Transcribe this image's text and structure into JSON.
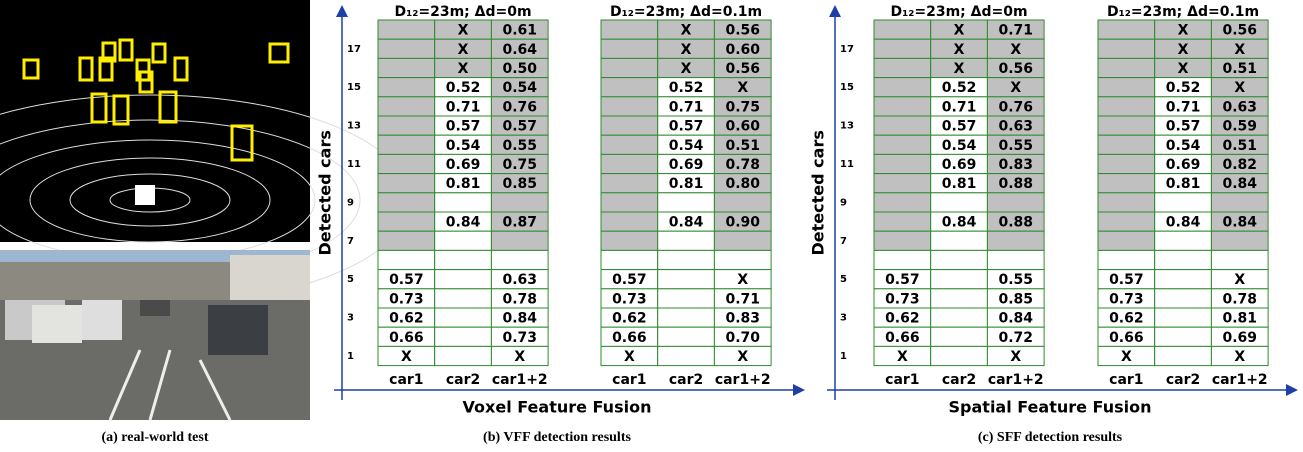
{
  "panels": [
    {
      "caption": "(a) real-world test"
    },
    {
      "caption": "(b) VFF detection results",
      "y_title": "Detected cars",
      "x_title": "Voxel Feature Fusion",
      "row_labels": [
        "17",
        "15",
        "13",
        "11",
        "9",
        "7",
        "5",
        "3",
        "1"
      ],
      "columns": [
        "car1",
        "car2",
        "car1+2"
      ],
      "tables": [
        {
          "title": "D₁₂=23m; Δd=0m",
          "rows": [
            [
              null,
              "X",
              "0.61"
            ],
            [
              null,
              "X",
              "0.64"
            ],
            [
              null,
              "X",
              "0.50"
            ],
            [
              null,
              "0.52",
              "0.54"
            ],
            [
              null,
              "0.71",
              "0.76"
            ],
            [
              null,
              "0.57",
              "0.57"
            ],
            [
              null,
              "0.54",
              "0.55"
            ],
            [
              null,
              "0.69",
              "0.75"
            ],
            [
              null,
              "0.81",
              "0.85"
            ],
            [
              null,
              null,
              null
            ],
            [
              null,
              "0.84",
              "0.87"
            ],
            [
              null,
              null,
              null
            ],
            [
              null,
              null,
              null
            ],
            [
              "0.57",
              null,
              "0.63"
            ],
            [
              "0.73",
              null,
              "0.78"
            ],
            [
              "0.62",
              null,
              "0.84"
            ],
            [
              "0.66",
              null,
              "0.73"
            ],
            [
              "X",
              null,
              "X"
            ]
          ]
        },
        {
          "title": "D₁₂=23m; Δd=0.1m",
          "rows": [
            [
              null,
              "X",
              "0.56"
            ],
            [
              null,
              "X",
              "0.60"
            ],
            [
              null,
              "X",
              "0.56"
            ],
            [
              null,
              "0.52",
              "X"
            ],
            [
              null,
              "0.71",
              "0.75"
            ],
            [
              null,
              "0.57",
              "0.60"
            ],
            [
              null,
              "0.54",
              "0.51"
            ],
            [
              null,
              "0.69",
              "0.78"
            ],
            [
              null,
              "0.81",
              "0.80"
            ],
            [
              null,
              null,
              null
            ],
            [
              null,
              "0.84",
              "0.90"
            ],
            [
              null,
              null,
              null
            ],
            [
              null,
              null,
              null
            ],
            [
              "0.57",
              null,
              "X"
            ],
            [
              "0.73",
              null,
              "0.71"
            ],
            [
              "0.62",
              null,
              "0.83"
            ],
            [
              "0.66",
              null,
              "0.70"
            ],
            [
              "X",
              null,
              "X"
            ]
          ]
        }
      ]
    },
    {
      "caption": "(c) SFF detection results",
      "y_title": "Detected cars",
      "x_title": "Spatial Feature Fusion",
      "row_labels": [
        "17",
        "15",
        "13",
        "11",
        "9",
        "7",
        "5",
        "3",
        "1"
      ],
      "columns": [
        "car1",
        "car2",
        "car1+2"
      ],
      "tables": [
        {
          "title": "D₁₂=23m; Δd=0m",
          "rows": [
            [
              null,
              "X",
              "0.71"
            ],
            [
              null,
              "X",
              "X"
            ],
            [
              null,
              "X",
              "0.56"
            ],
            [
              null,
              "0.52",
              "X"
            ],
            [
              null,
              "0.71",
              "0.76"
            ],
            [
              null,
              "0.57",
              "0.63"
            ],
            [
              null,
              "0.54",
              "0.55"
            ],
            [
              null,
              "0.69",
              "0.83"
            ],
            [
              null,
              "0.81",
              "0.88"
            ],
            [
              null,
              null,
              null
            ],
            [
              null,
              "0.84",
              "0.88"
            ],
            [
              null,
              null,
              null
            ],
            [
              null,
              null,
              null
            ],
            [
              "0.57",
              null,
              "0.55"
            ],
            [
              "0.73",
              null,
              "0.85"
            ],
            [
              "0.62",
              null,
              "0.84"
            ],
            [
              "0.66",
              null,
              "0.72"
            ],
            [
              "X",
              null,
              "X"
            ]
          ]
        },
        {
          "title": "D₁₂=23m; Δd=0.1m",
          "rows": [
            [
              null,
              "X",
              "0.56"
            ],
            [
              null,
              "X",
              "X"
            ],
            [
              null,
              "X",
              "0.51"
            ],
            [
              null,
              "0.52",
              "X"
            ],
            [
              null,
              "0.71",
              "0.63"
            ],
            [
              null,
              "0.57",
              "0.59"
            ],
            [
              null,
              "0.54",
              "0.51"
            ],
            [
              null,
              "0.69",
              "0.82"
            ],
            [
              null,
              "0.81",
              "0.84"
            ],
            [
              null,
              null,
              null
            ],
            [
              null,
              "0.84",
              "0.84"
            ],
            [
              null,
              null,
              null
            ],
            [
              null,
              null,
              null
            ],
            [
              "0.57",
              null,
              "X"
            ],
            [
              "0.73",
              null,
              "0.78"
            ],
            [
              "0.62",
              null,
              "0.81"
            ],
            [
              "0.66",
              null,
              "0.69"
            ],
            [
              "X",
              null,
              "X"
            ]
          ]
        }
      ]
    }
  ]
}
